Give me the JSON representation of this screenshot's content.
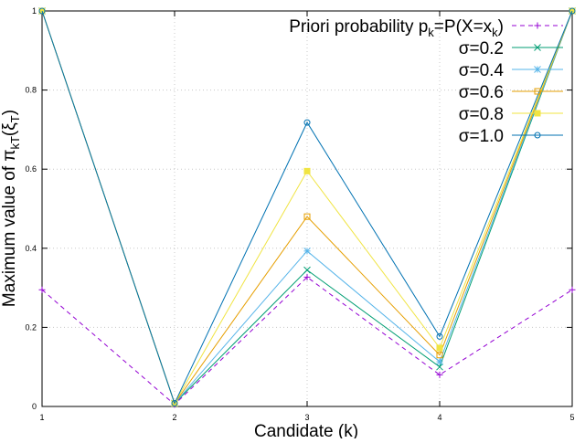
{
  "chart_data": {
    "type": "line",
    "title": "",
    "xlabel": "Candidate (k)",
    "ylabel": "Maximum value of π_kT(ξ_T)",
    "ylabel_parts": {
      "prefix": "Maximum value of π",
      "sub": "kT",
      "mid": "(ξ",
      "sub2": "T",
      "suffix": ")"
    },
    "xlim": [
      1,
      5
    ],
    "ylim": [
      0,
      1
    ],
    "x_ticks": [
      "1",
      "2",
      "3",
      "4",
      "5"
    ],
    "y_ticks": [
      "0",
      "0.2",
      "0.4",
      "0.6",
      "0.8",
      "1"
    ],
    "grid": true,
    "legend_position": "top-right",
    "x": [
      1,
      2,
      3,
      4,
      5
    ],
    "series": [
      {
        "name": "Priori probability p_k=P(X=x_k)",
        "label_parts": {
          "a": "Priori probability p",
          "s1": "k",
          "b": "=P(X=x",
          "s2": "k",
          "c": ")"
        },
        "values": [
          0.295,
          0.005,
          0.327,
          0.08,
          0.295
        ],
        "color": "#9400d3",
        "dash": true,
        "marker": "plus"
      },
      {
        "name": "σ=0.2",
        "values": [
          1.0,
          0.008,
          0.345,
          0.1,
          1.0
        ],
        "color": "#009e73",
        "dash": false,
        "marker": "x"
      },
      {
        "name": "σ=0.4",
        "values": [
          1.0,
          0.008,
          0.393,
          0.113,
          1.0
        ],
        "color": "#56b4e9",
        "dash": false,
        "marker": "star"
      },
      {
        "name": "σ=0.6",
        "values": [
          1.0,
          0.008,
          0.48,
          0.13,
          1.0
        ],
        "color": "#e69f00",
        "dash": false,
        "marker": "square"
      },
      {
        "name": "σ=0.8",
        "values": [
          1.0,
          0.008,
          0.595,
          0.148,
          1.0
        ],
        "color": "#f0e442",
        "dash": false,
        "marker": "filled-square"
      },
      {
        "name": "σ=1.0",
        "values": [
          1.0,
          0.008,
          0.718,
          0.177,
          1.0
        ],
        "color": "#0072b2",
        "dash": false,
        "marker": "circle"
      }
    ]
  }
}
